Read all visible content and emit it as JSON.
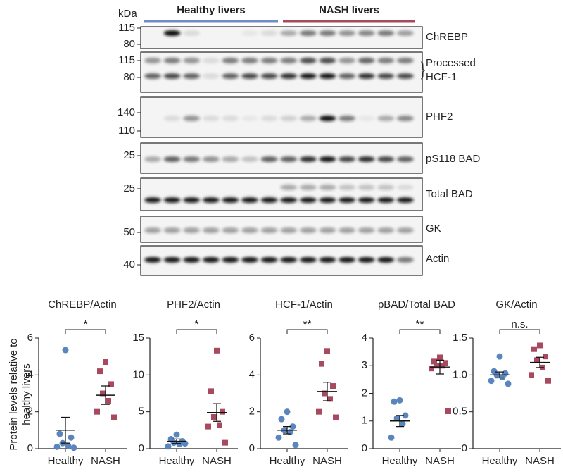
{
  "blot": {
    "kda_label": "kDa",
    "groups": [
      {
        "label": "Healthy livers",
        "color": "#6d8fc6"
      },
      {
        "label": "NASH livers",
        "color": "#a84a5f"
      }
    ],
    "panels": [
      {
        "label": [
          "ChREBP"
        ],
        "markers": [
          115,
          80
        ]
      },
      {
        "label": [
          "Processed",
          "HCF-1"
        ],
        "markers": [
          115,
          80
        ]
      },
      {
        "label": [
          "PHF2"
        ],
        "markers": [
          140,
          110
        ]
      },
      {
        "label": [
          "pS118 BAD"
        ],
        "markers": [
          25
        ]
      },
      {
        "label": [
          "Total BAD"
        ],
        "markers": [
          25
        ]
      },
      {
        "label": [
          "GK"
        ],
        "markers": [
          50
        ]
      },
      {
        "label": [
          "Actin"
        ],
        "markers": [
          40
        ]
      }
    ]
  },
  "chart_data": [
    {
      "type": "scatter",
      "title": "ChREBP/Actin",
      "ylabel": [
        "Protein levels relative to",
        "healthy livers"
      ],
      "significance": "*",
      "categories": [
        "Healthy",
        "NASH"
      ],
      "ylim": [
        0,
        6
      ],
      "yticks": [
        0,
        2,
        4,
        6
      ],
      "series": [
        {
          "color": "#5b85bd",
          "marker": "circle",
          "values": [
            5.35,
            0.8,
            0.6,
            0.3,
            0.15,
            0.1,
            0.05
          ],
          "mean": 1.0,
          "sem": 0.7
        },
        {
          "color": "#a84a5f",
          "marker": "square",
          "values": [
            4.7,
            4.2,
            3.5,
            3.0,
            2.6,
            2.0,
            1.7
          ],
          "mean": 2.9,
          "sem": 0.5
        }
      ]
    },
    {
      "type": "scatter",
      "title": "PHF2/Actin",
      "significance": "*",
      "categories": [
        "Healthy",
        "NASH"
      ],
      "ylim": [
        0,
        15
      ],
      "yticks": [
        0,
        5,
        10,
        15
      ],
      "series": [
        {
          "color": "#5b85bd",
          "marker": "circle",
          "values": [
            1.9,
            1.3,
            1.0,
            0.8,
            0.6,
            0.3,
            0.7
          ],
          "mean": 1.0,
          "sem": 0.3
        },
        {
          "color": "#a84a5f",
          "marker": "square",
          "values": [
            13.3,
            7.8,
            5.0,
            4.3,
            3.2,
            3.0,
            0.8
          ],
          "mean": 4.9,
          "sem": 1.2
        }
      ]
    },
    {
      "type": "scatter",
      "title": "HCF-1/Actin",
      "significance": "**",
      "categories": [
        "Healthy",
        "NASH"
      ],
      "ylim": [
        0,
        6
      ],
      "yticks": [
        0,
        2,
        4,
        6
      ],
      "series": [
        {
          "color": "#5b85bd",
          "marker": "circle",
          "values": [
            2.0,
            1.6,
            1.2,
            1.0,
            0.9,
            0.6,
            0.2
          ],
          "mean": 1.0,
          "sem": 0.2
        },
        {
          "color": "#a84a5f",
          "marker": "square",
          "values": [
            5.3,
            4.6,
            3.4,
            3.0,
            2.7,
            2.0,
            1.7
          ],
          "mean": 3.1,
          "sem": 0.5
        }
      ]
    },
    {
      "type": "scatter",
      "title": "pBAD/Total BAD",
      "significance": "**",
      "categories": [
        "Healthy",
        "NASH"
      ],
      "ylim": [
        0,
        4
      ],
      "yticks": [
        0,
        1,
        2,
        3,
        4
      ],
      "series": [
        {
          "color": "#5b85bd",
          "marker": "circle",
          "values": [
            1.75,
            1.7,
            1.2,
            1.1,
            0.9,
            0.4
          ],
          "mean": 1.0,
          "sem": 0.2
        },
        {
          "color": "#a84a5f",
          "marker": "square",
          "values": [
            3.3,
            3.15,
            3.1,
            3.0,
            3.0,
            2.9,
            1.35
          ],
          "mean": 2.95,
          "sem": 0.25
        }
      ]
    },
    {
      "type": "scatter",
      "title": "GK/Actin",
      "significance": "n.s.",
      "categories": [
        "Healthy",
        "NASH"
      ],
      "ylim": [
        0,
        1.5
      ],
      "yticks": [
        0,
        0.5,
        {
          "value": 1,
          "label": "1.0"
        },
        1.5
      ],
      "series": [
        {
          "color": "#5b85bd",
          "marker": "circle",
          "values": [
            1.25,
            1.05,
            1.02,
            1.0,
            0.97,
            0.92,
            0.88
          ],
          "mean": 1.0,
          "sem": 0.04
        },
        {
          "color": "#a84a5f",
          "marker": "square",
          "values": [
            1.4,
            1.35,
            1.25,
            1.2,
            1.1,
            1.0,
            0.92
          ],
          "mean": 1.17,
          "sem": 0.07
        }
      ]
    }
  ]
}
